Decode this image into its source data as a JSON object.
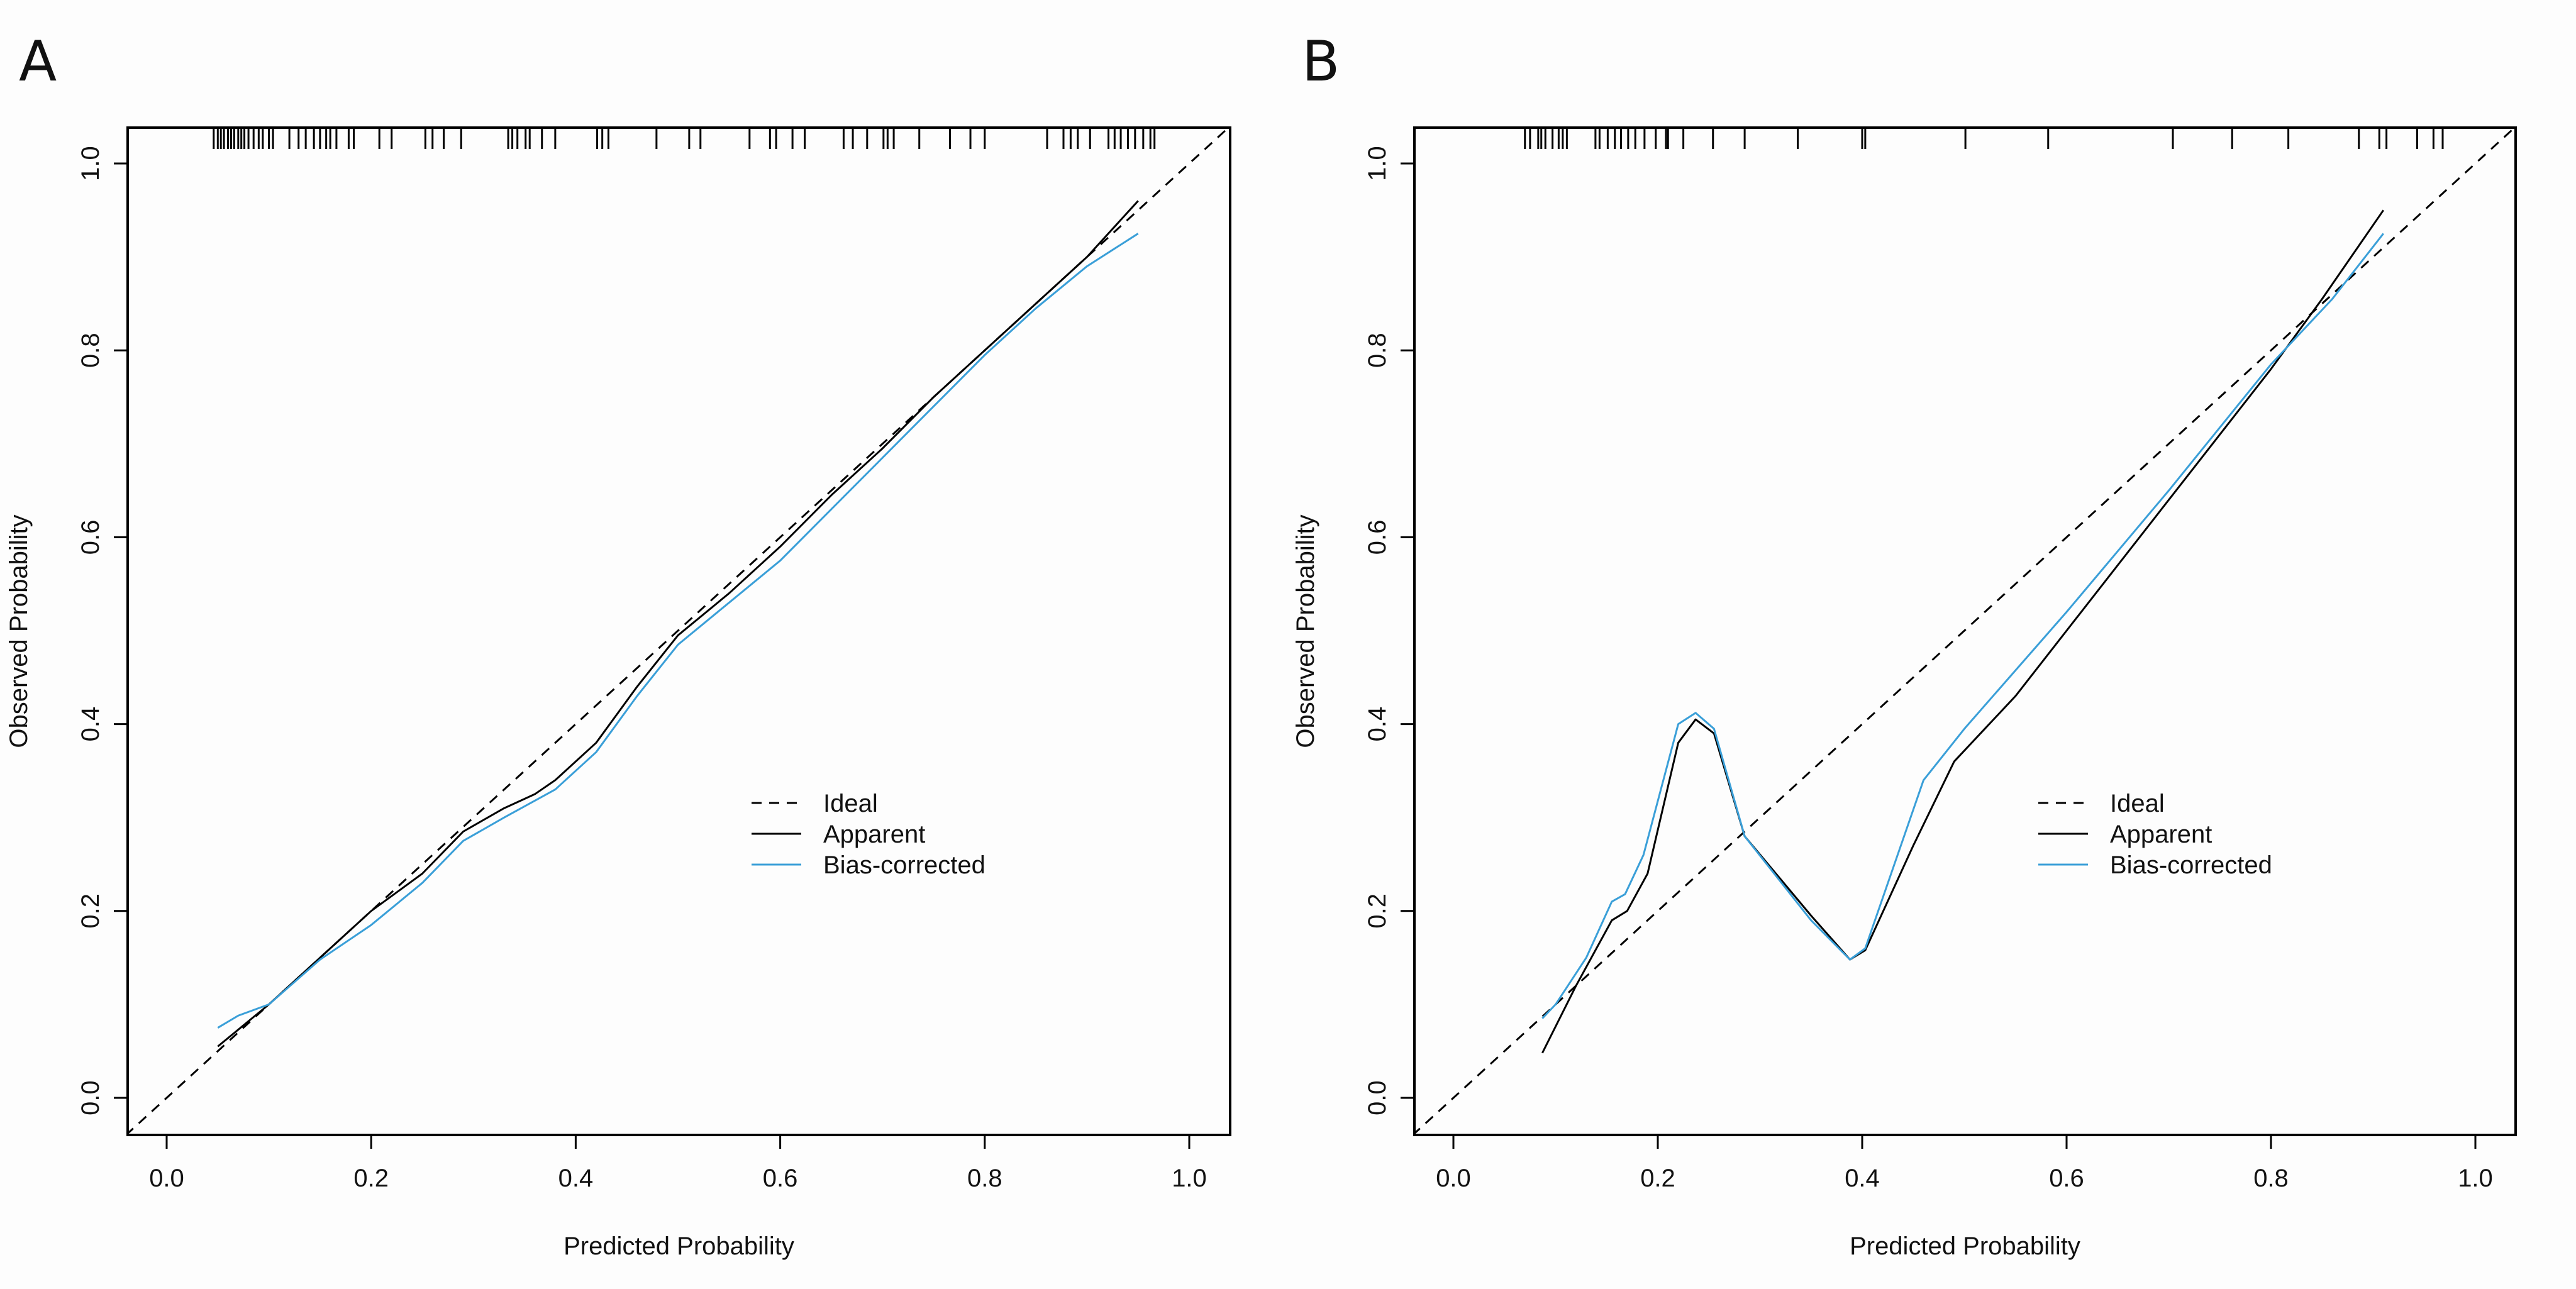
{
  "chart_data": [
    {
      "panel_label": "A",
      "type": "line",
      "xlabel": "Predicted Probability",
      "ylabel": "Observed  Probability",
      "xlim": [
        -0.04,
        1.04
      ],
      "ylim": [
        -0.04,
        1.04
      ],
      "xticks": [
        "0.0",
        "0.2",
        "0.4",
        "0.6",
        "0.8",
        "1.0"
      ],
      "yticks": [
        "0.0",
        "0.2",
        "0.4",
        "0.6",
        "0.8",
        "1.0"
      ],
      "grid": false,
      "legend_position": "center-right",
      "legend": [
        "Ideal",
        "Apparent",
        "Bias-corrected"
      ],
      "series": [
        {
          "name": "Ideal",
          "style": "dashed",
          "color": "#000000",
          "x": [
            -0.04,
            1.04
          ],
          "y": [
            -0.04,
            1.04
          ]
        },
        {
          "name": "Apparent",
          "style": "solid",
          "color": "#000000",
          "x": [
            0.05,
            0.1,
            0.15,
            0.2,
            0.25,
            0.29,
            0.33,
            0.36,
            0.38,
            0.42,
            0.46,
            0.5,
            0.55,
            0.6,
            0.65,
            0.7,
            0.75,
            0.8,
            0.85,
            0.9,
            0.95
          ],
          "y": [
            0.055,
            0.1,
            0.15,
            0.2,
            0.24,
            0.285,
            0.31,
            0.325,
            0.34,
            0.38,
            0.44,
            0.495,
            0.54,
            0.59,
            0.645,
            0.695,
            0.75,
            0.8,
            0.85,
            0.9,
            0.96
          ]
        },
        {
          "name": "Bias-corrected",
          "style": "solid",
          "color": "#3a9fd8",
          "x": [
            0.05,
            0.07,
            0.1,
            0.15,
            0.2,
            0.25,
            0.29,
            0.33,
            0.36,
            0.38,
            0.42,
            0.46,
            0.5,
            0.55,
            0.6,
            0.65,
            0.7,
            0.75,
            0.8,
            0.85,
            0.9,
            0.95
          ],
          "y": [
            0.075,
            0.088,
            0.1,
            0.148,
            0.185,
            0.23,
            0.275,
            0.3,
            0.318,
            0.33,
            0.37,
            0.43,
            0.485,
            0.53,
            0.575,
            0.63,
            0.685,
            0.74,
            0.795,
            0.845,
            0.89,
            0.925
          ]
        }
      ],
      "rug": [
        0.046,
        0.05,
        0.053,
        0.056,
        0.06,
        0.063,
        0.066,
        0.07,
        0.073,
        0.076,
        0.08,
        0.085,
        0.09,
        0.094,
        0.1,
        0.104,
        0.12,
        0.129,
        0.136,
        0.144,
        0.15,
        0.156,
        0.16,
        0.166,
        0.178,
        0.183,
        0.208,
        0.22,
        0.253,
        0.26,
        0.271,
        0.288,
        0.334,
        0.338,
        0.343,
        0.351,
        0.355,
        0.367,
        0.38,
        0.421,
        0.426,
        0.432,
        0.479,
        0.511,
        0.522,
        0.57,
        0.59,
        0.596,
        0.612,
        0.624,
        0.662,
        0.671,
        0.685,
        0.701,
        0.705,
        0.711,
        0.736,
        0.766,
        0.786,
        0.8,
        0.861,
        0.877,
        0.884,
        0.891,
        0.903,
        0.921,
        0.927,
        0.933,
        0.94,
        0.947,
        0.955,
        0.962,
        0.966
      ]
    },
    {
      "panel_label": "B",
      "type": "line",
      "xlabel": "Predicted Probability",
      "ylabel": "Observed  Probability",
      "xlim": [
        -0.04,
        1.04
      ],
      "ylim": [
        -0.04,
        1.04
      ],
      "xticks": [
        "0.0",
        "0.2",
        "0.4",
        "0.6",
        "0.8",
        "1.0"
      ],
      "yticks": [
        "0.0",
        "0.2",
        "0.4",
        "0.6",
        "0.8",
        "1.0"
      ],
      "grid": false,
      "legend_position": "center-right",
      "legend": [
        "Ideal",
        "Apparent",
        "Bias-corrected"
      ],
      "series": [
        {
          "name": "Ideal",
          "style": "dashed",
          "color": "#000000",
          "x": [
            -0.04,
            1.04
          ],
          "y": [
            -0.04,
            1.04
          ]
        },
        {
          "name": "Apparent",
          "style": "solid",
          "color": "#000000",
          "x": [
            0.087,
            0.12,
            0.155,
            0.17,
            0.19,
            0.22,
            0.237,
            0.255,
            0.285,
            0.35,
            0.388,
            0.403,
            0.45,
            0.49,
            0.55,
            0.6,
            0.7,
            0.8,
            0.85,
            0.91
          ],
          "y": [
            0.048,
            0.12,
            0.19,
            0.2,
            0.24,
            0.38,
            0.405,
            0.39,
            0.28,
            0.195,
            0.148,
            0.158,
            0.27,
            0.36,
            0.43,
            0.5,
            0.64,
            0.78,
            0.855,
            0.95
          ]
        },
        {
          "name": "Bias-corrected",
          "style": "solid",
          "color": "#3a9fd8",
          "x": [
            0.087,
            0.1,
            0.13,
            0.155,
            0.168,
            0.186,
            0.22,
            0.237,
            0.255,
            0.285,
            0.35,
            0.388,
            0.403,
            0.46,
            0.5,
            0.6,
            0.7,
            0.8,
            0.86,
            0.91
          ],
          "y": [
            0.085,
            0.1,
            0.15,
            0.21,
            0.218,
            0.26,
            0.4,
            0.412,
            0.395,
            0.28,
            0.19,
            0.148,
            0.16,
            0.34,
            0.395,
            0.52,
            0.65,
            0.785,
            0.855,
            0.925
          ]
        }
      ],
      "rug": [
        0.07,
        0.075,
        0.083,
        0.086,
        0.09,
        0.097,
        0.103,
        0.107,
        0.111,
        0.139,
        0.143,
        0.151,
        0.158,
        0.164,
        0.171,
        0.178,
        0.187,
        0.198,
        0.208,
        0.21,
        0.225,
        0.254,
        0.285,
        0.337,
        0.4,
        0.403,
        0.501,
        0.582,
        0.704,
        0.762,
        0.817,
        0.886,
        0.906,
        0.913,
        0.943,
        0.959,
        0.968
      ]
    }
  ]
}
